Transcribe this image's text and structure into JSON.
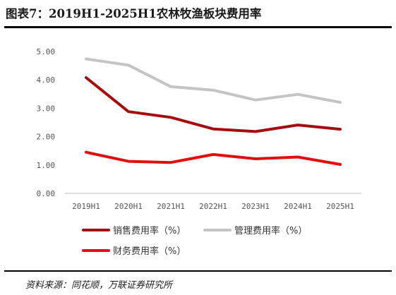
{
  "title": "图表7：2019H1-2025H1农林牧渔板块费用率",
  "source": "资料来源：同花顺，万联证券研究所",
  "chart_data": {
    "type": "line",
    "categories": [
      "2019H1",
      "2020H1",
      "2021H1",
      "2022H1",
      "2023H1",
      "2024H1",
      "2025H1"
    ],
    "ylim": [
      0,
      5
    ],
    "yticks": [
      "0.00",
      "1.00",
      "2.00",
      "3.00",
      "4.00",
      "5.00"
    ],
    "grid": false,
    "legend_position": "bottom",
    "series": [
      {
        "name": "销售费用率（%）",
        "color": "#a50e0e",
        "values": [
          4.08,
          2.88,
          2.68,
          2.27,
          2.18,
          2.41,
          2.26
        ]
      },
      {
        "name": "管理费用率（%）",
        "color": "#c4c4c4",
        "values": [
          4.74,
          4.52,
          3.76,
          3.64,
          3.29,
          3.49,
          3.21
        ]
      },
      {
        "name": "财务费用率（%）",
        "color": "#e01010",
        "values": [
          1.45,
          1.13,
          1.09,
          1.37,
          1.22,
          1.28,
          1.02
        ]
      }
    ]
  }
}
